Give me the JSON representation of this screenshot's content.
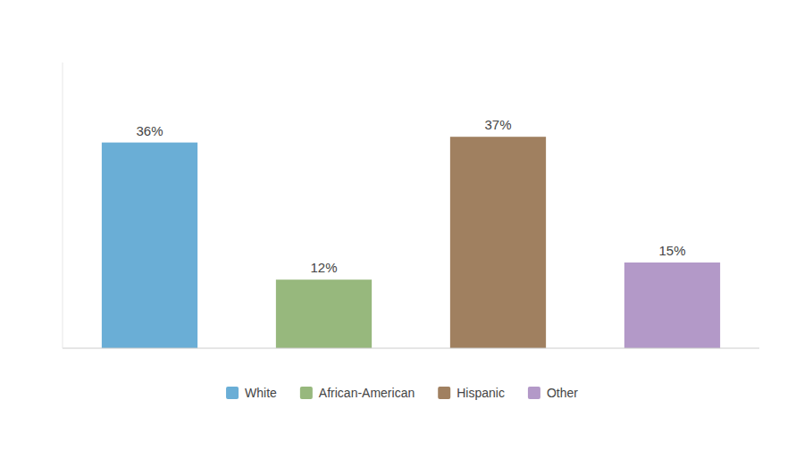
{
  "chart_data": {
    "type": "bar",
    "categories": [
      "White",
      "African-American",
      "Hispanic",
      "Other"
    ],
    "values": [
      36,
      12,
      37,
      15
    ],
    "value_labels": [
      "36%",
      "12%",
      "37%",
      "15%"
    ],
    "colors": [
      "#6aaed6",
      "#97b87d",
      "#a08060",
      "#b399c8"
    ],
    "ylim": [
      0,
      50
    ],
    "data_labels": true,
    "tick_labels": false,
    "grid": false,
    "legend": "bottom"
  }
}
